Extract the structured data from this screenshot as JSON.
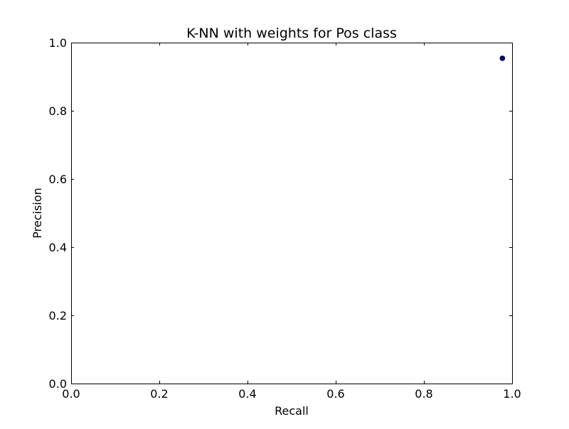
{
  "chart_data": {
    "type": "scatter",
    "title": "K-NN with weights for Pos class",
    "xlabel": "Recall",
    "ylabel": "Precision",
    "xlim": [
      0.0,
      1.0
    ],
    "ylim": [
      0.0,
      1.0
    ],
    "xticks": [
      0.0,
      0.2,
      0.4,
      0.6,
      0.8,
      1.0
    ],
    "yticks": [
      0.0,
      0.2,
      0.4,
      0.6,
      0.8,
      1.0
    ],
    "xtick_labels": [
      "0.0",
      "0.2",
      "0.4",
      "0.6",
      "0.8",
      "1.0"
    ],
    "ytick_labels": [
      "0.0",
      "0.2",
      "0.4",
      "0.6",
      "0.8",
      "1.0"
    ],
    "grid": false,
    "series": [
      {
        "points": [
          {
            "x": 0.978,
            "y": 0.954
          }
        ],
        "color": "#00007f"
      }
    ]
  }
}
